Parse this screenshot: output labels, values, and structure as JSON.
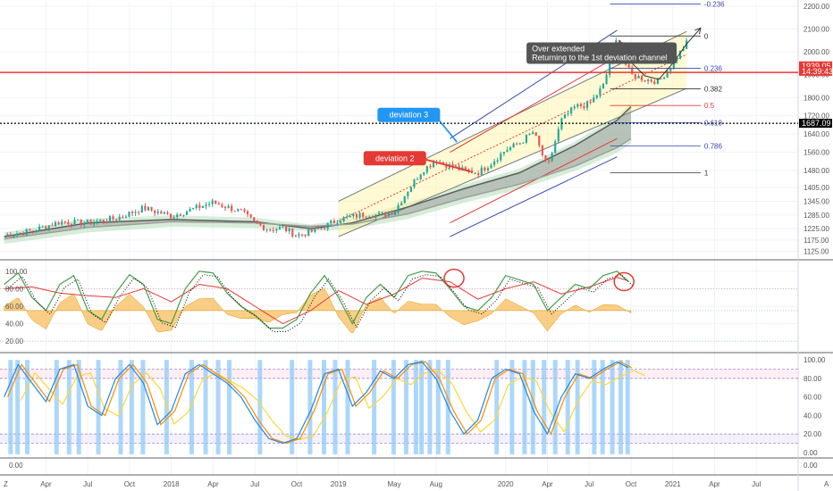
{
  "chart_data": {
    "type": "candlestick",
    "title": "",
    "price_axis": {
      "ticks": [
        "2200.00",
        "2100.00",
        "2000.00",
        "1900.00",
        "1800.00",
        "1720.00",
        "1640.00",
        "1560.00",
        "1480.00",
        "1405.00",
        "1345.00",
        "1285.00",
        "1225.00",
        "1175.00",
        "1125.00"
      ],
      "ylim": [
        1100,
        2220
      ]
    },
    "price_tags": [
      {
        "label": "1939.05",
        "value": 1939,
        "color": "#e53935"
      },
      {
        "label": "14:39:43",
        "value": 1915,
        "color": "#e53935"
      },
      {
        "label": "1687.09",
        "value": 1687,
        "color": "#000000"
      }
    ],
    "horizontal_lines": [
      {
        "value": 1910,
        "color": "#e53935",
        "style": "solid",
        "name": "support"
      },
      {
        "value": 1687,
        "color": "#000000",
        "style": "dotted",
        "name": "level"
      }
    ],
    "x_axis": {
      "labels": [
        "Apr",
        "Jul",
        "Oct",
        "2018",
        "Apr",
        "Jul",
        "Oct",
        "2019",
        "May",
        "Aug",
        "2020",
        "Apr",
        "Jul",
        "Oct",
        "2021",
        "Apr",
        "Jul"
      ],
      "label_months": [
        3,
        6,
        9,
        12,
        15,
        18,
        21,
        24,
        28,
        31,
        36,
        39,
        42,
        45,
        48,
        51,
        54
      ],
      "range_months": [
        -0.3,
        57
      ]
    },
    "price_series": {
      "start_label": "Jan 2017",
      "interval": "weekly",
      "anchors": [
        [
          0,
          1195
        ],
        [
          2,
          1215
        ],
        [
          4,
          1255
        ],
        [
          6,
          1250
        ],
        [
          8,
          1270
        ],
        [
          10,
          1315
        ],
        [
          12,
          1280
        ],
        [
          14,
          1320
        ],
        [
          15,
          1340
        ],
        [
          17,
          1300
        ],
        [
          18,
          1250
        ],
        [
          19,
          1222
        ],
        [
          20,
          1228
        ],
        [
          21,
          1195
        ],
        [
          22,
          1210
        ],
        [
          23,
          1235
        ],
        [
          24,
          1265
        ],
        [
          26,
          1290
        ],
        [
          27,
          1285
        ],
        [
          28,
          1300
        ],
        [
          29,
          1395
        ],
        [
          30,
          1480
        ],
        [
          31,
          1525
        ],
        [
          32,
          1500
        ],
        [
          33,
          1480
        ],
        [
          34,
          1470
        ],
        [
          35,
          1515
        ],
        [
          36,
          1570
        ],
        [
          37,
          1600
        ],
        [
          38,
          1650
        ],
        [
          39,
          1490
        ],
        [
          40,
          1700
        ],
        [
          41,
          1760
        ],
        [
          42,
          1770
        ],
        [
          43,
          1850
        ],
        [
          44,
          2060
        ],
        [
          44.5,
          1960
        ],
        [
          45,
          1900
        ],
        [
          46,
          1880
        ],
        [
          47,
          1870
        ],
        [
          48,
          1950
        ],
        [
          49,
          2040
        ]
      ]
    },
    "moving_averages": [
      {
        "name": "fast",
        "color": "#5d5d5d",
        "points": [
          [
            0,
            1190
          ],
          [
            6,
            1250
          ],
          [
            12,
            1265
          ],
          [
            18,
            1255
          ],
          [
            22,
            1225
          ],
          [
            25,
            1250
          ],
          [
            29,
            1320
          ],
          [
            33,
            1400
          ],
          [
            37,
            1470
          ],
          [
            41,
            1590
          ],
          [
            44,
            1700
          ],
          [
            45,
            1760
          ]
        ]
      },
      {
        "name": "slow",
        "color": "#9e9e9e",
        "points": [
          [
            0,
            1180
          ],
          [
            6,
            1230
          ],
          [
            12,
            1255
          ],
          [
            18,
            1250
          ],
          [
            22,
            1235
          ],
          [
            25,
            1245
          ],
          [
            29,
            1290
          ],
          [
            33,
            1360
          ],
          [
            37,
            1420
          ],
          [
            41,
            1500
          ],
          [
            44,
            1580
          ],
          [
            45,
            1620
          ]
        ]
      }
    ],
    "channels": [
      {
        "name": "center",
        "color": "#e53935",
        "style": "dotted",
        "from": [
          24,
          1258
        ],
        "to": [
          49,
          1990
        ]
      },
      {
        "name": "deviation 1 upper",
        "color": "#7a7a7a",
        "from": [
          24,
          1345
        ],
        "to": [
          49,
          2090
        ]
      },
      {
        "name": "deviation 1 lower",
        "color": "#7a7a7a",
        "from": [
          24,
          1190
        ],
        "to": [
          49,
          1840
        ]
      },
      {
        "name": "deviation 2 upper",
        "color": "#e53935",
        "from": [
          32,
          1560
        ],
        "to": [
          44,
          1980
        ]
      },
      {
        "name": "deviation 2 lower",
        "color": "#e53935",
        "from": [
          32,
          1250
        ],
        "to": [
          44,
          1620
        ]
      },
      {
        "name": "deviation 3 upper",
        "color": "#3949ab",
        "from": [
          32,
          1620
        ],
        "to": [
          44,
          2095
        ]
      },
      {
        "name": "deviation 3 lower",
        "color": "#3949ab",
        "from": [
          32,
          1190
        ],
        "to": [
          44,
          1540
        ]
      }
    ],
    "fibonacci": {
      "levels": [
        {
          "label": "0",
          "value": 2070,
          "color": "#333333"
        },
        {
          "label": "-0.236",
          "value": 2210,
          "color": "#3949ab"
        },
        {
          "label": "0.236",
          "value": 1928,
          "color": "#3949ab"
        },
        {
          "label": "0.382",
          "value": 1838,
          "color": "#333333"
        },
        {
          "label": "0.5",
          "value": 1765,
          "color": "#e53935"
        },
        {
          "label": "0.618",
          "value": 1690,
          "color": "#3949ab"
        },
        {
          "label": "0.786",
          "value": 1587,
          "color": "#3949ab"
        },
        {
          "label": "1",
          "value": 1470,
          "color": "#333333"
        }
      ],
      "month_range": [
        43.5,
        50
      ]
    },
    "callouts": [
      {
        "text": "deviation 3",
        "color": "#2196f3",
        "box_month": 26.8,
        "box_value": 1755,
        "arrow_to": [
          32.5,
          1605
        ]
      },
      {
        "text": "deviation 2",
        "color": "#e53935",
        "box_month": 25.8,
        "box_value": 1565,
        "arrow_to": [
          33.5,
          1475
        ]
      }
    ],
    "note": {
      "lines": [
        "Over extended",
        "Returning to the 1st deviation channel"
      ],
      "color": "#555555",
      "box_month": 37.5,
      "box_value": 2042,
      "arrow_to": [
        44.3,
        2040
      ]
    },
    "projection": {
      "color": "#333333",
      "points": [
        [
          44.2,
          2050
        ],
        [
          45,
          1955
        ],
        [
          46,
          1895
        ],
        [
          47,
          1880
        ],
        [
          48,
          1950
        ],
        [
          49,
          2035
        ],
        [
          50,
          2105
        ]
      ]
    },
    "oscillator_1": {
      "ticks": [
        "100.00",
        "80.00",
        "60.00",
        "40.00",
        "20.00"
      ],
      "ylim": [
        10,
        110
      ],
      "fast_color": "#43a047",
      "slow_color": "#e53935",
      "signal_color": "#000000",
      "fill_color": "#f5a623",
      "fast_anchors": [
        [
          0,
          85
        ],
        [
          1,
          98
        ],
        [
          2,
          70
        ],
        [
          3,
          55
        ],
        [
          4,
          85
        ],
        [
          5,
          95
        ],
        [
          6,
          55
        ],
        [
          7,
          45
        ],
        [
          8,
          75
        ],
        [
          9,
          96
        ],
        [
          10,
          85
        ],
        [
          11,
          45
        ],
        [
          12,
          40
        ],
        [
          13,
          80
        ],
        [
          14,
          100
        ],
        [
          15,
          98
        ],
        [
          16,
          75
        ],
        [
          17,
          60
        ],
        [
          18,
          50
        ],
        [
          19,
          35
        ],
        [
          20,
          35
        ],
        [
          21,
          45
        ],
        [
          22,
          75
        ],
        [
          23,
          95
        ],
        [
          24,
          70
        ],
        [
          25,
          40
        ],
        [
          26,
          70
        ],
        [
          27,
          85
        ],
        [
          28,
          70
        ],
        [
          29,
          95
        ],
        [
          30,
          100
        ],
        [
          31,
          98
        ],
        [
          32,
          80
        ],
        [
          33,
          60
        ],
        [
          34,
          55
        ],
        [
          35,
          70
        ],
        [
          36,
          95
        ],
        [
          37,
          90
        ],
        [
          38,
          85
        ],
        [
          39,
          55
        ],
        [
          40,
          70
        ],
        [
          41,
          85
        ],
        [
          42,
          80
        ],
        [
          43,
          95
        ],
        [
          44,
          100
        ],
        [
          45,
          85
        ]
      ],
      "slow_anchors": [
        [
          0,
          80
        ],
        [
          2,
          82
        ],
        [
          4,
          75
        ],
        [
          6,
          72
        ],
        [
          8,
          70
        ],
        [
          10,
          80
        ],
        [
          12,
          65
        ],
        [
          14,
          85
        ],
        [
          16,
          80
        ],
        [
          18,
          60
        ],
        [
          20,
          40
        ],
        [
          22,
          55
        ],
        [
          24,
          78
        ],
        [
          26,
          62
        ],
        [
          28,
          74
        ],
        [
          30,
          92
        ],
        [
          32,
          88
        ],
        [
          34,
          68
        ],
        [
          36,
          80
        ],
        [
          38,
          88
        ],
        [
          40,
          74
        ],
        [
          42,
          82
        ],
        [
          44,
          93
        ],
        [
          45,
          88
        ]
      ],
      "circles": [
        [
          32.3,
          92
        ],
        [
          44.5,
          88
        ]
      ]
    },
    "oscillator_2": {
      "ticks": [
        "100.00",
        "80.00",
        "60.00",
        "40.00",
        "20.00",
        "0.00"
      ],
      "ylim": [
        -5,
        105
      ],
      "upper_band": [
        80,
        90
      ],
      "lower_band": [
        10,
        20
      ],
      "blue_color": "#1e88e5",
      "orange_color": "#fb8c00",
      "yellow_color": "#fdd835",
      "highlight_color": "#90caf9",
      "blue_anchors": [
        [
          0,
          60
        ],
        [
          1,
          95
        ],
        [
          2,
          75
        ],
        [
          3,
          55
        ],
        [
          4,
          90
        ],
        [
          5,
          95
        ],
        [
          6,
          50
        ],
        [
          7,
          40
        ],
        [
          8,
          80
        ],
        [
          9,
          95
        ],
        [
          10,
          75
        ],
        [
          11,
          30
        ],
        [
          12,
          45
        ],
        [
          13,
          85
        ],
        [
          14,
          95
        ],
        [
          15,
          85
        ],
        [
          16,
          75
        ],
        [
          17,
          60
        ],
        [
          18,
          35
        ],
        [
          19,
          15
        ],
        [
          20,
          10
        ],
        [
          21,
          15
        ],
        [
          22,
          45
        ],
        [
          23,
          85
        ],
        [
          24,
          90
        ],
        [
          25,
          50
        ],
        [
          26,
          65
        ],
        [
          27,
          88
        ],
        [
          28,
          80
        ],
        [
          29,
          95
        ],
        [
          30,
          98
        ],
        [
          31,
          80
        ],
        [
          32,
          45
        ],
        [
          33,
          20
        ],
        [
          34,
          35
        ],
        [
          35,
          80
        ],
        [
          36,
          90
        ],
        [
          37,
          85
        ],
        [
          38,
          45
        ],
        [
          39,
          20
        ],
        [
          40,
          60
        ],
        [
          41,
          85
        ],
        [
          42,
          80
        ],
        [
          43,
          90
        ],
        [
          44,
          98
        ],
        [
          45,
          90
        ]
      ],
      "highlight_months": [
        0.3,
        0.8,
        1.5,
        3.6,
        4.5,
        5.2,
        6.6,
        8.2,
        9,
        9.8,
        11.5,
        13.3,
        14.3,
        15.2,
        16,
        18.2,
        20.5,
        21.8,
        22.8,
        23.6,
        24.5,
        26.4,
        27.8,
        28.7,
        29.4,
        29.8,
        30.4,
        31,
        31.7,
        35.2,
        36.3,
        37.2,
        37.8,
        38.6,
        39.4,
        40.3,
        41,
        42.2,
        42.8,
        43.5,
        44.1,
        44.6
      ],
      "circles": []
    },
    "bottom_panel": {
      "ticks": [
        "0.00"
      ]
    },
    "axis_side_labels": [
      "Z",
      "A"
    ]
  }
}
